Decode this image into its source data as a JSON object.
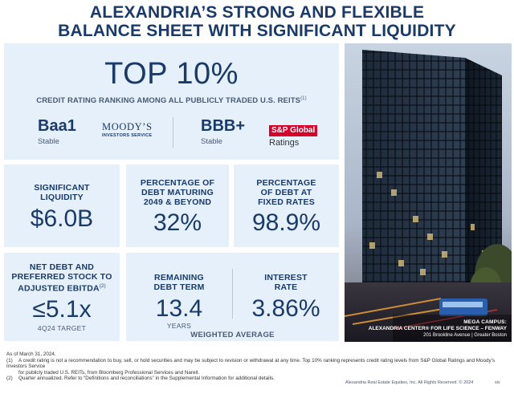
{
  "title": {
    "line1": "ALEXANDRIA’S STRONG AND FLEXIBLE",
    "line2": "BALANCE SHEET WITH SIGNIFICANT LIQUIDITY"
  },
  "top_panel": {
    "headline": "TOP 10%",
    "subtitle": "CREDIT RATING RANKING AMONG ALL PUBLICLY TRADED U.S. REITS",
    "subtitle_footnote": "(1)",
    "moodys": {
      "grade": "Baa1",
      "outlook": "Stable",
      "logo_line1": "MOODY’S",
      "logo_line2": "INVESTORS SERVICE"
    },
    "sp": {
      "grade": "BBB+",
      "outlook": "Stable",
      "logo_line1": "S&P Global",
      "logo_line2": "Ratings"
    }
  },
  "metrics": {
    "liquidity": {
      "label_line1": "SIGNIFICANT",
      "label_line2": "LIQUIDITY",
      "value": "$6.0B"
    },
    "maturing": {
      "label_line1": "PERCENTAGE OF",
      "label_line2": "DEBT MATURING",
      "label_line3": "2049 & BEYOND",
      "value": "32%"
    },
    "fixed": {
      "label_line1": "PERCENTAGE",
      "label_line2": "OF DEBT AT",
      "label_line3": "FIXED RATES",
      "value": "98.9%"
    },
    "net_debt": {
      "label_line1": "NET DEBT AND",
      "label_line2": "PREFERRED STOCK TO",
      "label_line3": "ADJUSTED EBITDA",
      "label_footnote": "(2)",
      "value": "≤5.1x",
      "note": "4Q24 TARGET"
    },
    "remaining": {
      "label_line1": "REMAINING",
      "label_line2": "DEBT TERM",
      "value": "13.4",
      "unit": "YEARS"
    },
    "interest": {
      "label_line1": "INTEREST",
      "label_line2": "RATE",
      "value": "3.86%"
    },
    "weighted_label": "WEIGHTED AVERAGE"
  },
  "photo": {
    "caption_line1": "MEGA CAMPUS:",
    "caption_line2": "ALEXANDRIA CENTER® FOR LIFE SCIENCE – FENWAY",
    "caption_line3": "201 Brookline Avenue | Greater Boston"
  },
  "footnotes": {
    "asof": "As of March 31, 2024.",
    "n1_num": "(1)",
    "n1_line1": "A credit rating is not a recommendation to buy, sell, or hold securities and may be subject to revision or withdrawal at any time. Top 10% ranking represents credit rating levels from S&P Global Ratings and Moody’s Investors Service",
    "n1_line2": "for publicly traded U.S. REITs, from Bloomberg Professional Services and Nareit.",
    "n2_num": "(2)",
    "n2_line1": "Quarter annualized. Refer to “Definitions and reconciliations” in the Supplemental Information for additional details."
  },
  "footer": {
    "copyright": "Alexandria Real Estate Equities, Inc. All Rights Reserved. © 2024",
    "page": "xiv"
  }
}
